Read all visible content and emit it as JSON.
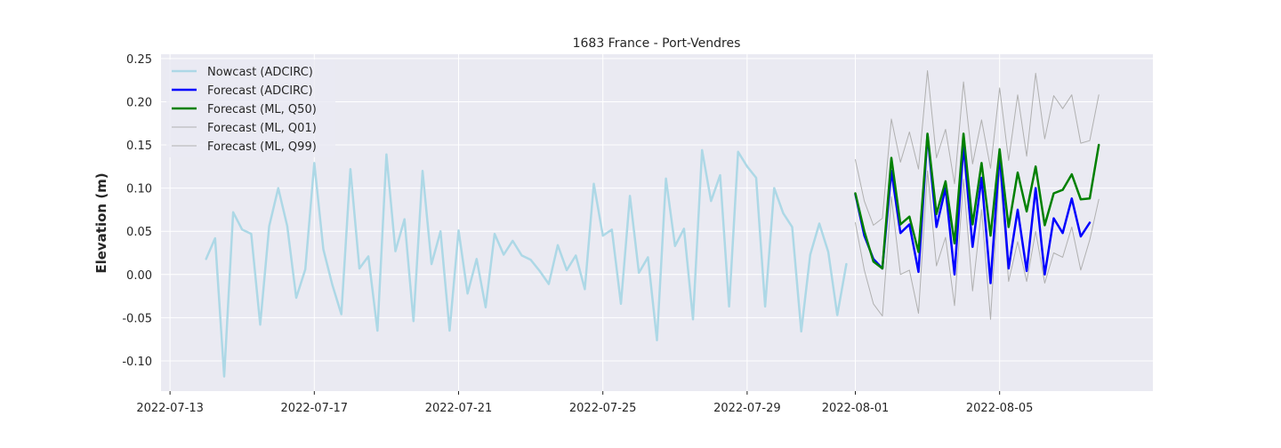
{
  "chart_data": {
    "type": "line",
    "title": "1683 France - Port-Vendres",
    "xlabel": "",
    "ylabel": "Elevation (m)",
    "x_type": "date",
    "xlim": [
      "2022-07-12T18:00",
      "2022-08-09T06:00"
    ],
    "ylim": [
      -0.135,
      0.255
    ],
    "grid": true,
    "legend_position": "top-left",
    "x_ticks": [
      "2022-07-13",
      "2022-07-17",
      "2022-07-21",
      "2022-07-25",
      "2022-07-29",
      "2022-08-01",
      "2022-08-05"
    ],
    "y_ticks": [
      "0.25",
      "0.20",
      "0.15",
      "0.10",
      "0.05",
      "0.00",
      "-0.05",
      "-0.10"
    ],
    "series": [
      {
        "name": "Nowcast (ADCIRC)",
        "color": "#add8e6",
        "line_width": 2.5,
        "x_start": "2022-07-14T00:00",
        "x_step_hours": 6,
        "values": [
          0.018,
          0.042,
          -0.118,
          0.072,
          0.052,
          0.047,
          -0.058,
          0.056,
          0.1,
          0.056,
          -0.027,
          0.006,
          0.129,
          0.029,
          -0.012,
          -0.046,
          0.122,
          0.007,
          0.021,
          -0.065,
          0.139,
          0.027,
          0.064,
          -0.054,
          0.12,
          0.012,
          0.05,
          -0.065,
          0.051,
          -0.022,
          0.018,
          -0.038,
          0.047,
          0.023,
          0.039,
          0.022,
          0.017,
          0.004,
          -0.011,
          0.034,
          0.005,
          0.022,
          -0.017,
          0.105,
          0.045,
          0.052,
          -0.034,
          0.091,
          0.002,
          0.02,
          -0.076,
          0.111,
          0.033,
          0.053,
          -0.052,
          0.144,
          0.085,
          0.115,
          -0.037,
          0.142,
          0.125,
          0.112,
          -0.037,
          0.1,
          0.071,
          0.055,
          -0.066,
          0.023,
          0.059,
          0.026,
          -0.047,
          0.012
        ]
      },
      {
        "name": "Forecast (ADCIRC)",
        "color": "#0000ff",
        "line_width": 2.5,
        "x_start": "2022-08-01T00:00",
        "x_step_hours": 6,
        "values": [
          0.093,
          0.045,
          0.018,
          0.007,
          0.12,
          0.048,
          0.058,
          0.003,
          0.162,
          0.055,
          0.1,
          0.0,
          0.15,
          0.032,
          0.112,
          -0.01,
          0.14,
          0.007,
          0.075,
          0.004,
          0.1,
          0.0,
          0.065,
          0.048,
          0.088,
          0.044,
          0.06
        ]
      },
      {
        "name": "Forecast (ML, Q50)",
        "color": "#008000",
        "line_width": 2.5,
        "x_start": "2022-08-01T00:00",
        "x_step_hours": 6,
        "values": [
          0.094,
          0.05,
          0.015,
          0.007,
          0.135,
          0.058,
          0.067,
          0.026,
          0.163,
          0.07,
          0.108,
          0.036,
          0.163,
          0.058,
          0.129,
          0.045,
          0.145,
          0.055,
          0.118,
          0.073,
          0.125,
          0.057,
          0.094,
          0.098,
          0.116,
          0.087,
          0.088,
          0.15
        ]
      },
      {
        "name": "Forecast (ML, Q01)",
        "color": "#b0b0b0",
        "line_width": 1,
        "x_start": "2022-08-01T00:00",
        "x_step_hours": 6,
        "values": [
          0.06,
          0.005,
          -0.034,
          -0.048,
          0.09,
          0.0,
          0.005,
          -0.045,
          0.12,
          0.01,
          0.043,
          -0.036,
          0.11,
          -0.019,
          0.075,
          -0.052,
          0.122,
          -0.008,
          0.038,
          -0.008,
          0.05,
          -0.01,
          0.025,
          0.02,
          0.055,
          0.005,
          0.04,
          0.087
        ]
      },
      {
        "name": "Forecast (ML, Q99)",
        "color": "#b0b0b0",
        "line_width": 1,
        "x_start": "2022-08-01T00:00",
        "x_step_hours": 6,
        "values": [
          0.133,
          0.085,
          0.057,
          0.065,
          0.18,
          0.13,
          0.165,
          0.122,
          0.236,
          0.135,
          0.168,
          0.105,
          0.223,
          0.128,
          0.179,
          0.123,
          0.216,
          0.132,
          0.208,
          0.137,
          0.233,
          0.157,
          0.207,
          0.192,
          0.208,
          0.152,
          0.155,
          0.208
        ]
      }
    ]
  }
}
